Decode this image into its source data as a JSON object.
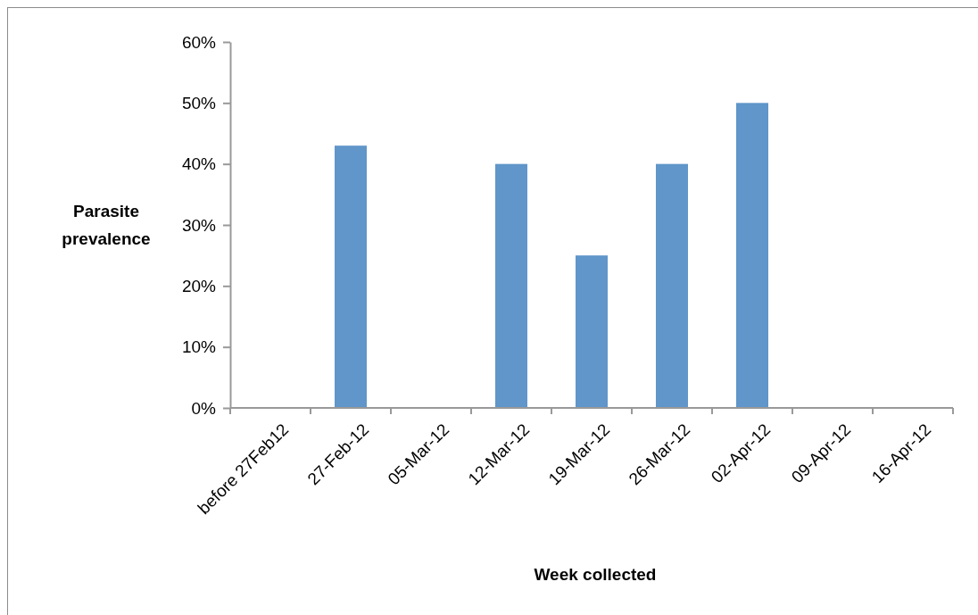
{
  "chart_data": {
    "type": "bar",
    "xlabel": "Week collected",
    "ylabel": "Parasite prevalence",
    "categories": [
      "before 27Feb12",
      "27-Feb-12",
      "05-Mar-12",
      "12-Mar-12",
      "19-Mar-12",
      "26-Mar-12",
      "02-Apr-12",
      "09-Apr-12",
      "16-Apr-12"
    ],
    "values": [
      0,
      43,
      0,
      40,
      25,
      40,
      50,
      0,
      0
    ],
    "color": "#6096c9",
    "ylim": [
      0,
      60
    ],
    "yticks": [
      {
        "value": 0,
        "label": "0%"
      },
      {
        "value": 10,
        "label": "10%"
      },
      {
        "value": 20,
        "label": "20%"
      },
      {
        "value": 30,
        "label": "30%"
      },
      {
        "value": 40,
        "label": "40%"
      },
      {
        "value": 50,
        "label": "50%"
      },
      {
        "value": 60,
        "label": "60%"
      }
    ],
    "grid": false
  }
}
